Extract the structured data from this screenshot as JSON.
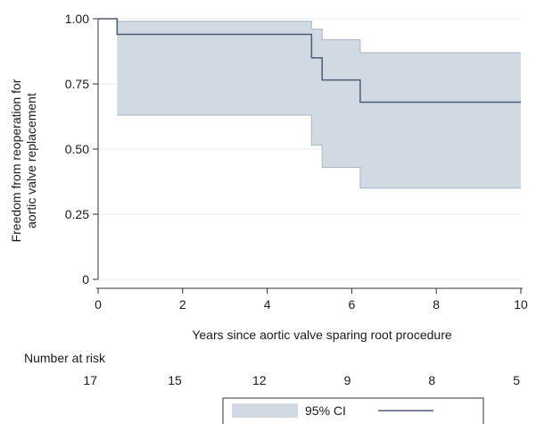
{
  "chart_data": {
    "type": "line",
    "xlabel": "Years since aortic valve sparing root procedure",
    "ylabel_lines": [
      "Freedom from reoperation for",
      "aortic valve replacement"
    ],
    "xlim": [
      0,
      10
    ],
    "ylim": [
      0,
      1
    ],
    "x_ticks": [
      0,
      2,
      4,
      6,
      8,
      10
    ],
    "y_ticks": [
      "0",
      "0.25",
      "0.50",
      "0.75",
      "1.00"
    ],
    "y_tick_values": [
      0,
      0.25,
      0.5,
      0.75,
      1.0
    ],
    "grid": true,
    "series": [
      {
        "kind": "step",
        "color": "#4a5d75",
        "x": [
          0,
          0.45,
          5.05,
          5.3,
          6.2,
          10
        ],
        "y": [
          1.0,
          0.94,
          0.85,
          0.765,
          0.68,
          0.68
        ]
      }
    ],
    "ci_band": {
      "name": "95% CI",
      "color": "#d1d9e3",
      "edge_color": "#a8b4c3",
      "x": [
        0.45,
        5.05,
        5.3,
        6.2,
        10
      ],
      "upper": [
        0.99,
        0.96,
        0.92,
        0.87,
        0.87
      ],
      "lower": [
        0.63,
        0.515,
        0.43,
        0.35,
        0.35
      ]
    },
    "risk_table": {
      "title": "Number at risk",
      "x": [
        0,
        2,
        4,
        6,
        8,
        10
      ],
      "values": [
        "17",
        "15",
        "12",
        "9",
        "8",
        "5"
      ]
    },
    "legend": {
      "placement": "bottom",
      "entries": [
        "95% CI",
        ""
      ]
    }
  }
}
